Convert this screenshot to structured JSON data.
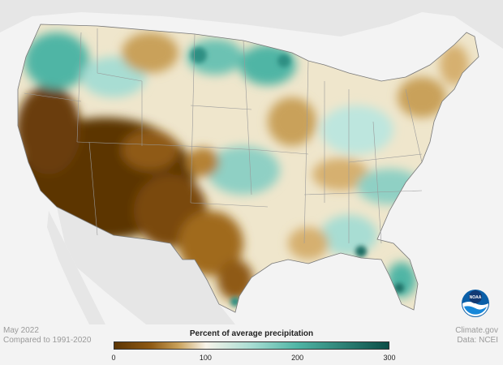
{
  "map": {
    "title": "Percent of average precipitation",
    "period": "May 2022",
    "baseline": "Compared to 1991-2020",
    "credit": "Climate.gov",
    "source": "Data: NCEI",
    "legend": {
      "ticks": [
        "0",
        "100",
        "200",
        "300"
      ],
      "tick_values": [
        0,
        100,
        200,
        300
      ],
      "range": [
        0,
        300
      ],
      "stops": [
        {
          "value": 0,
          "color": "#5c3504"
        },
        {
          "value": 40,
          "color": "#8f5a14"
        },
        {
          "value": 70,
          "color": "#c9a15a"
        },
        {
          "value": 100,
          "color": "#f8f4ea"
        },
        {
          "value": 150,
          "color": "#a8ddd3"
        },
        {
          "value": 200,
          "color": "#4fb5a5"
        },
        {
          "value": 300,
          "color": "#0c4e47"
        }
      ]
    },
    "colors": {
      "land_background": "#e6e6e6",
      "page_background": "#f3f3f3",
      "borders": "#9a9a9a"
    },
    "logo": "noaa-logo"
  }
}
